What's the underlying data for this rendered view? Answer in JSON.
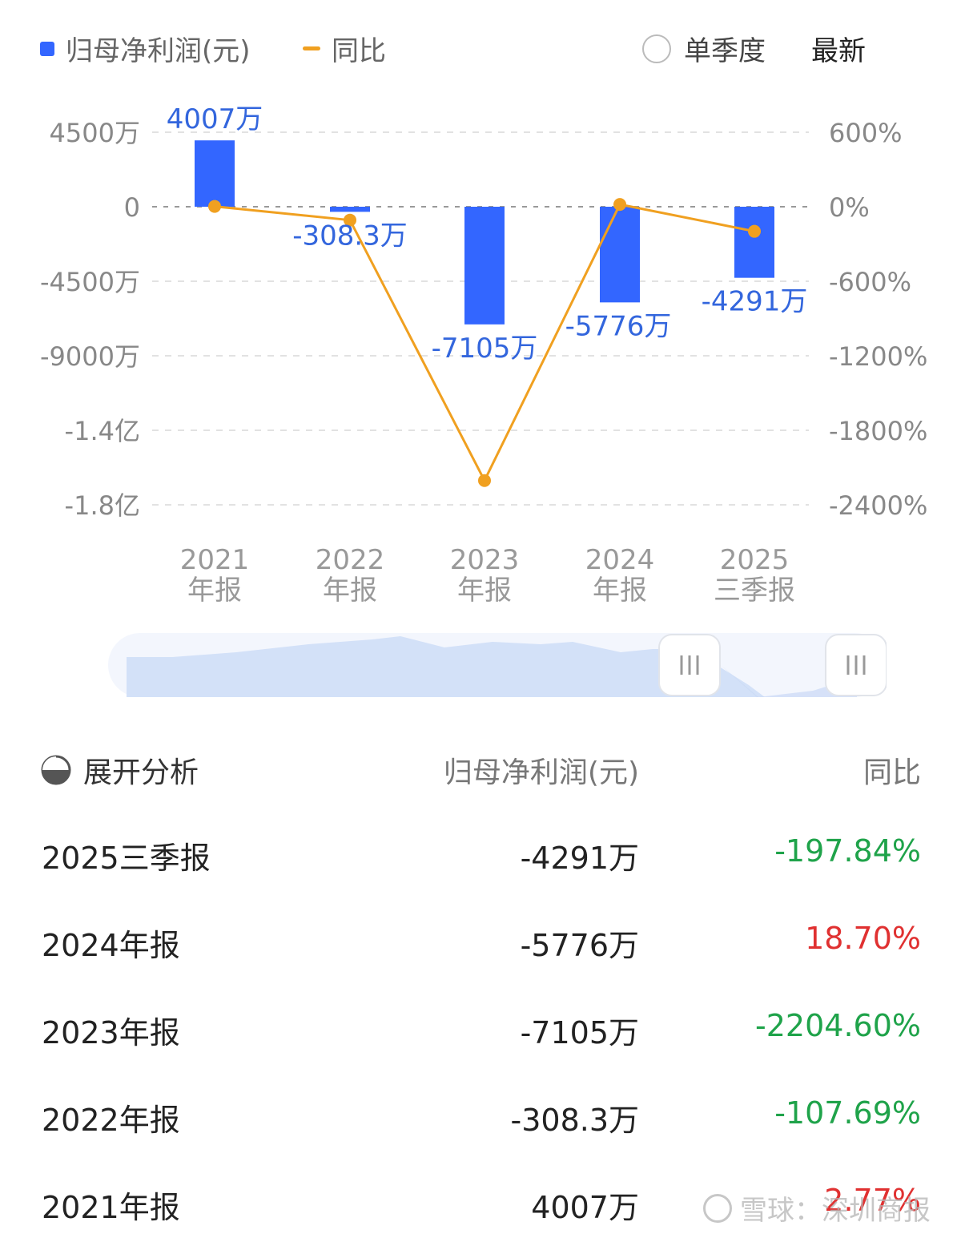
{
  "legend": {
    "bar_label": "归母净利润(元)",
    "line_label": "同比",
    "toggle_label": "单季度",
    "latest_label": "最新"
  },
  "colors": {
    "bar": "#3366FF",
    "line": "#F0A020",
    "pos": "#E03131",
    "neg": "#1FA34A"
  },
  "chart_data": {
    "type": "bar",
    "categories": [
      [
        "2021",
        "年报"
      ],
      [
        "2022",
        "年报"
      ],
      [
        "2023",
        "年报"
      ],
      [
        "2024",
        "年报"
      ],
      [
        "2025",
        "三季报"
      ]
    ],
    "series": [
      {
        "name": "归母净利润(元)",
        "type": "bar",
        "values": [
          4007,
          -308.3,
          -7105,
          -5776,
          -4291
        ],
        "labels": [
          "4007万",
          "-308.3万",
          "-7105万",
          "-5776万",
          "-4291万"
        ]
      },
      {
        "name": "同比",
        "type": "line",
        "values": [
          2.77,
          -107.69,
          -2204.6,
          18.7,
          -197.84
        ]
      }
    ],
    "left_ticks": [
      "4500万",
      "0",
      "-4500万",
      "-9000万",
      "-1.4亿",
      "-1.8亿"
    ],
    "right_ticks": [
      "600%",
      "0%",
      "-600%",
      "-1200%",
      "-1800%",
      "-2400%"
    ],
    "ylim_left": [
      -18000,
      4500
    ],
    "ylim_right": [
      -2400,
      600
    ],
    "grid": true
  },
  "table": {
    "expand_label": "展开分析",
    "col_value": "归母净利润(元)",
    "col_yoy": "同比",
    "rows": [
      {
        "period": "2025三季报",
        "value": "-4291万",
        "yoy": "-197.84%",
        "dir": "neg"
      },
      {
        "period": "2024年报",
        "value": "-5776万",
        "yoy": "18.70%",
        "dir": "pos"
      },
      {
        "period": "2023年报",
        "value": "-7105万",
        "yoy": "-2204.60%",
        "dir": "neg"
      },
      {
        "period": "2022年报",
        "value": "-308.3万",
        "yoy": "-107.69%",
        "dir": "neg"
      },
      {
        "period": "2021年报",
        "value": "4007万",
        "yoy": "2.77%",
        "dir": "pos"
      }
    ]
  },
  "watermark": "雪球：深圳商报"
}
